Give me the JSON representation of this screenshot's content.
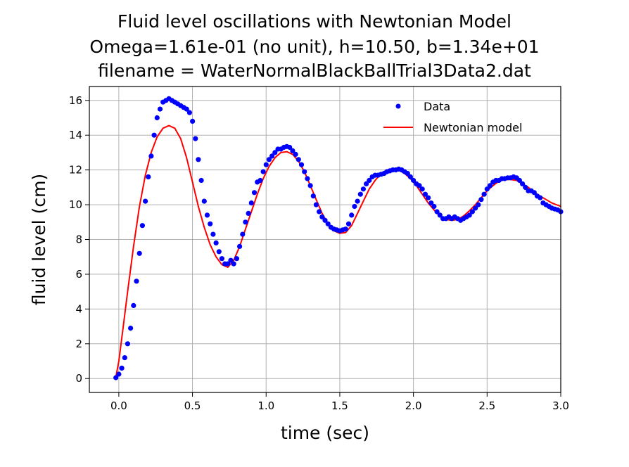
{
  "chart_data": {
    "type": "scatter",
    "title": [
      "Fluid level oscillations with Newtonian Model",
      "Omega=1.61e-01 (no unit), h=10.50, b=1.34e+01",
      "filename = WaterNormalBlackBallTrial3Data2.dat"
    ],
    "xlabel": "time (sec)",
    "ylabel": "fluid level (cm)",
    "xlim": [
      -0.2,
      3.0
    ],
    "ylim": [
      -0.8,
      16.8
    ],
    "xticks": [
      0.0,
      0.5,
      1.0,
      1.5,
      2.0,
      2.5,
      3.0
    ],
    "xtick_labels": [
      "0.0",
      "0.5",
      "1.0",
      "1.5",
      "2.0",
      "2.5",
      "3.0"
    ],
    "yticks": [
      0,
      2,
      4,
      6,
      8,
      10,
      12,
      14,
      16
    ],
    "ytick_labels": [
      "0",
      "2",
      "4",
      "6",
      "8",
      "10",
      "12",
      "14",
      "16"
    ],
    "grid": true,
    "legend_position": "top-right",
    "series": [
      {
        "name": "Data",
        "style": "markers",
        "color": "#0000ff",
        "points": [
          [
            -0.02,
            0.05
          ],
          [
            0.0,
            0.25
          ],
          [
            0.02,
            0.6
          ],
          [
            0.04,
            1.2
          ],
          [
            0.06,
            2.0
          ],
          [
            0.08,
            2.9
          ],
          [
            0.1,
            4.2
          ],
          [
            0.12,
            5.6
          ],
          [
            0.14,
            7.2
          ],
          [
            0.16,
            8.8
          ],
          [
            0.18,
            10.2
          ],
          [
            0.2,
            11.6
          ],
          [
            0.22,
            12.8
          ],
          [
            0.24,
            14.0
          ],
          [
            0.26,
            15.0
          ],
          [
            0.28,
            15.5
          ],
          [
            0.3,
            15.9
          ],
          [
            0.32,
            16.0
          ],
          [
            0.34,
            16.1
          ],
          [
            0.36,
            16.0
          ],
          [
            0.38,
            15.9
          ],
          [
            0.4,
            15.8
          ],
          [
            0.42,
            15.7
          ],
          [
            0.44,
            15.6
          ],
          [
            0.46,
            15.5
          ],
          [
            0.48,
            15.3
          ],
          [
            0.5,
            14.8
          ],
          [
            0.52,
            13.8
          ],
          [
            0.54,
            12.6
          ],
          [
            0.56,
            11.4
          ],
          [
            0.58,
            10.2
          ],
          [
            0.6,
            9.4
          ],
          [
            0.62,
            8.9
          ],
          [
            0.64,
            8.3
          ],
          [
            0.66,
            7.8
          ],
          [
            0.68,
            7.3
          ],
          [
            0.7,
            6.9
          ],
          [
            0.72,
            6.6
          ],
          [
            0.74,
            6.6
          ],
          [
            0.76,
            6.8
          ],
          [
            0.78,
            6.6
          ],
          [
            0.8,
            6.9
          ],
          [
            0.82,
            7.6
          ],
          [
            0.84,
            8.3
          ],
          [
            0.86,
            9.0
          ],
          [
            0.88,
            9.5
          ],
          [
            0.9,
            10.1
          ],
          [
            0.92,
            10.7
          ],
          [
            0.94,
            11.3
          ],
          [
            0.96,
            11.4
          ],
          [
            0.98,
            11.9
          ],
          [
            1.0,
            12.3
          ],
          [
            1.02,
            12.6
          ],
          [
            1.04,
            12.8
          ],
          [
            1.06,
            13.0
          ],
          [
            1.08,
            13.2
          ],
          [
            1.1,
            13.2
          ],
          [
            1.12,
            13.3
          ],
          [
            1.14,
            13.35
          ],
          [
            1.16,
            13.3
          ],
          [
            1.18,
            13.1
          ],
          [
            1.2,
            12.9
          ],
          [
            1.22,
            12.6
          ],
          [
            1.24,
            12.3
          ],
          [
            1.26,
            11.9
          ],
          [
            1.28,
            11.5
          ],
          [
            1.3,
            11.1
          ],
          [
            1.32,
            10.5
          ],
          [
            1.34,
            10.0
          ],
          [
            1.36,
            9.6
          ],
          [
            1.38,
            9.3
          ],
          [
            1.4,
            9.1
          ],
          [
            1.42,
            8.9
          ],
          [
            1.44,
            8.7
          ],
          [
            1.46,
            8.6
          ],
          [
            1.48,
            8.55
          ],
          [
            1.5,
            8.5
          ],
          [
            1.52,
            8.55
          ],
          [
            1.54,
            8.6
          ],
          [
            1.56,
            8.9
          ],
          [
            1.58,
            9.4
          ],
          [
            1.6,
            9.9
          ],
          [
            1.62,
            10.2
          ],
          [
            1.64,
            10.6
          ],
          [
            1.66,
            10.9
          ],
          [
            1.68,
            11.2
          ],
          [
            1.7,
            11.4
          ],
          [
            1.72,
            11.6
          ],
          [
            1.74,
            11.7
          ],
          [
            1.76,
            11.7
          ],
          [
            1.78,
            11.75
          ],
          [
            1.8,
            11.8
          ],
          [
            1.82,
            11.9
          ],
          [
            1.84,
            11.95
          ],
          [
            1.86,
            12.0
          ],
          [
            1.88,
            12.0
          ],
          [
            1.9,
            12.05
          ],
          [
            1.92,
            12.0
          ],
          [
            1.94,
            11.9
          ],
          [
            1.96,
            11.8
          ],
          [
            1.98,
            11.6
          ],
          [
            2.0,
            11.4
          ],
          [
            2.02,
            11.2
          ],
          [
            2.04,
            11.1
          ],
          [
            2.06,
            10.9
          ],
          [
            2.08,
            10.6
          ],
          [
            2.1,
            10.4
          ],
          [
            2.12,
            10.1
          ],
          [
            2.14,
            9.9
          ],
          [
            2.16,
            9.6
          ],
          [
            2.18,
            9.4
          ],
          [
            2.2,
            9.2
          ],
          [
            2.22,
            9.2
          ],
          [
            2.24,
            9.3
          ],
          [
            2.26,
            9.2
          ],
          [
            2.28,
            9.3
          ],
          [
            2.3,
            9.2
          ],
          [
            2.32,
            9.1
          ],
          [
            2.34,
            9.2
          ],
          [
            2.36,
            9.3
          ],
          [
            2.38,
            9.4
          ],
          [
            2.4,
            9.6
          ],
          [
            2.42,
            9.8
          ],
          [
            2.44,
            10.0
          ],
          [
            2.46,
            10.3
          ],
          [
            2.48,
            10.6
          ],
          [
            2.5,
            10.9
          ],
          [
            2.52,
            11.1
          ],
          [
            2.54,
            11.3
          ],
          [
            2.56,
            11.4
          ],
          [
            2.58,
            11.4
          ],
          [
            2.6,
            11.5
          ],
          [
            2.62,
            11.5
          ],
          [
            2.64,
            11.55
          ],
          [
            2.66,
            11.55
          ],
          [
            2.68,
            11.6
          ],
          [
            2.7,
            11.55
          ],
          [
            2.72,
            11.4
          ],
          [
            2.74,
            11.2
          ],
          [
            2.76,
            11.0
          ],
          [
            2.78,
            10.8
          ],
          [
            2.8,
            10.8
          ],
          [
            2.82,
            10.7
          ],
          [
            2.84,
            10.5
          ],
          [
            2.86,
            10.4
          ],
          [
            2.88,
            10.1
          ],
          [
            2.9,
            10.0
          ],
          [
            2.92,
            9.9
          ],
          [
            2.94,
            9.8
          ],
          [
            2.96,
            9.75
          ],
          [
            2.98,
            9.7
          ],
          [
            3.0,
            9.6
          ]
        ]
      },
      {
        "name": "Newtonian model",
        "style": "line",
        "color": "#ff0000",
        "points": [
          [
            -0.02,
            0.1
          ],
          [
            0.0,
            1.0
          ],
          [
            0.03,
            3.0
          ],
          [
            0.06,
            5.0
          ],
          [
            0.1,
            7.6
          ],
          [
            0.14,
            9.9
          ],
          [
            0.18,
            11.7
          ],
          [
            0.22,
            13.0
          ],
          [
            0.26,
            13.9
          ],
          [
            0.3,
            14.4
          ],
          [
            0.34,
            14.55
          ],
          [
            0.38,
            14.4
          ],
          [
            0.42,
            13.8
          ],
          [
            0.46,
            12.7
          ],
          [
            0.5,
            11.3
          ],
          [
            0.54,
            9.9
          ],
          [
            0.58,
            8.7
          ],
          [
            0.62,
            7.7
          ],
          [
            0.66,
            7.0
          ],
          [
            0.7,
            6.55
          ],
          [
            0.74,
            6.4
          ],
          [
            0.78,
            6.8
          ],
          [
            0.82,
            7.6
          ],
          [
            0.86,
            8.6
          ],
          [
            0.9,
            9.6
          ],
          [
            0.94,
            10.6
          ],
          [
            0.98,
            11.5
          ],
          [
            1.02,
            12.2
          ],
          [
            1.06,
            12.7
          ],
          [
            1.1,
            13.0
          ],
          [
            1.14,
            13.05
          ],
          [
            1.18,
            12.9
          ],
          [
            1.22,
            12.5
          ],
          [
            1.26,
            11.9
          ],
          [
            1.3,
            11.1
          ],
          [
            1.34,
            10.3
          ],
          [
            1.38,
            9.5
          ],
          [
            1.42,
            8.9
          ],
          [
            1.46,
            8.5
          ],
          [
            1.5,
            8.35
          ],
          [
            1.54,
            8.4
          ],
          [
            1.58,
            8.8
          ],
          [
            1.62,
            9.5
          ],
          [
            1.66,
            10.2
          ],
          [
            1.7,
            10.9
          ],
          [
            1.74,
            11.4
          ],
          [
            1.78,
            11.8
          ],
          [
            1.82,
            12.0
          ],
          [
            1.86,
            12.05
          ],
          [
            1.9,
            12.0
          ],
          [
            1.94,
            11.8
          ],
          [
            1.98,
            11.5
          ],
          [
            2.02,
            11.1
          ],
          [
            2.06,
            10.6
          ],
          [
            2.1,
            10.1
          ],
          [
            2.14,
            9.7
          ],
          [
            2.18,
            9.35
          ],
          [
            2.22,
            9.15
          ],
          [
            2.26,
            9.1
          ],
          [
            2.3,
            9.15
          ],
          [
            2.34,
            9.35
          ],
          [
            2.38,
            9.65
          ],
          [
            2.42,
            10.0
          ],
          [
            2.46,
            10.4
          ],
          [
            2.5,
            10.8
          ],
          [
            2.54,
            11.1
          ],
          [
            2.58,
            11.35
          ],
          [
            2.62,
            11.45
          ],
          [
            2.66,
            11.45
          ],
          [
            2.7,
            11.4
          ],
          [
            2.74,
            11.2
          ],
          [
            2.78,
            11.0
          ],
          [
            2.82,
            10.7
          ],
          [
            2.86,
            10.5
          ],
          [
            2.9,
            10.3
          ],
          [
            2.94,
            10.1
          ],
          [
            3.0,
            9.9
          ]
        ]
      }
    ]
  }
}
